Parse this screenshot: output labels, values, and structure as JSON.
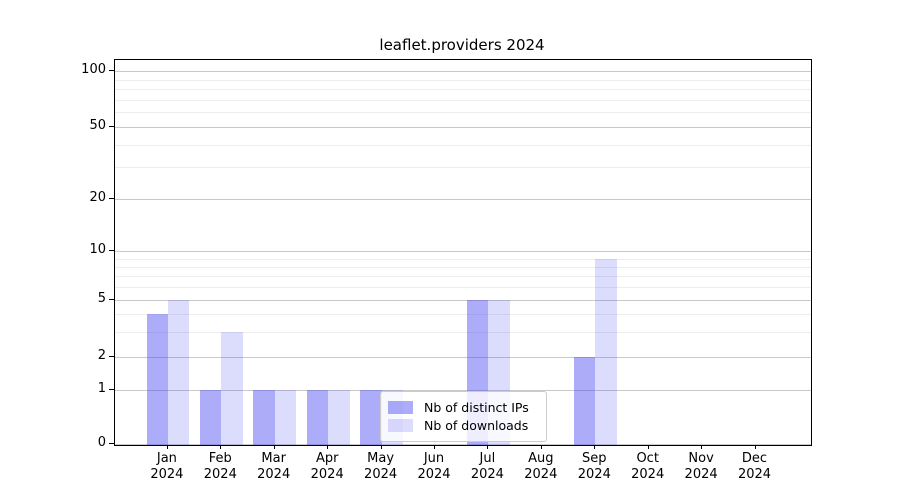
{
  "figure": {
    "title": "leaflet.providers 2024",
    "background_color": "#ffffff",
    "text_color": "#000000",
    "spine_color": "#000000",
    "major_grid_color": "#c9c9c9",
    "minor_grid_color": "#ededed"
  },
  "chart_data": {
    "type": "bar",
    "title": "leaflet.providers 2024",
    "xlabel": "",
    "ylabel": "",
    "categories": [
      "Jan",
      "Feb",
      "Mar",
      "Apr",
      "May",
      "Jun",
      "Jul",
      "Aug",
      "Sep",
      "Oct",
      "Nov",
      "Dec"
    ],
    "category_year": "2024",
    "series": [
      {
        "name": "Nb of distinct IPs",
        "color": "rgba(70,70,240,0.45)",
        "values": [
          4,
          1,
          1,
          1,
          1,
          0,
          5,
          0,
          2,
          0,
          0,
          0
        ]
      },
      {
        "name": "Nb of downloads",
        "color": "rgba(70,70,240,0.19)",
        "values": [
          5,
          3,
          1,
          1,
          1,
          0,
          5,
          0,
          9,
          0,
          0,
          0
        ]
      }
    ],
    "yscale": "symlog",
    "yticks": [
      0,
      1,
      2,
      5,
      10,
      20,
      50,
      100
    ],
    "y_minor_gridlines": [
      3,
      4,
      6,
      7,
      8,
      9,
      30,
      40,
      60,
      70,
      80,
      90
    ],
    "ylim": [
      0,
      115
    ],
    "grid": true,
    "legend_position": "inside-bottom-center"
  }
}
